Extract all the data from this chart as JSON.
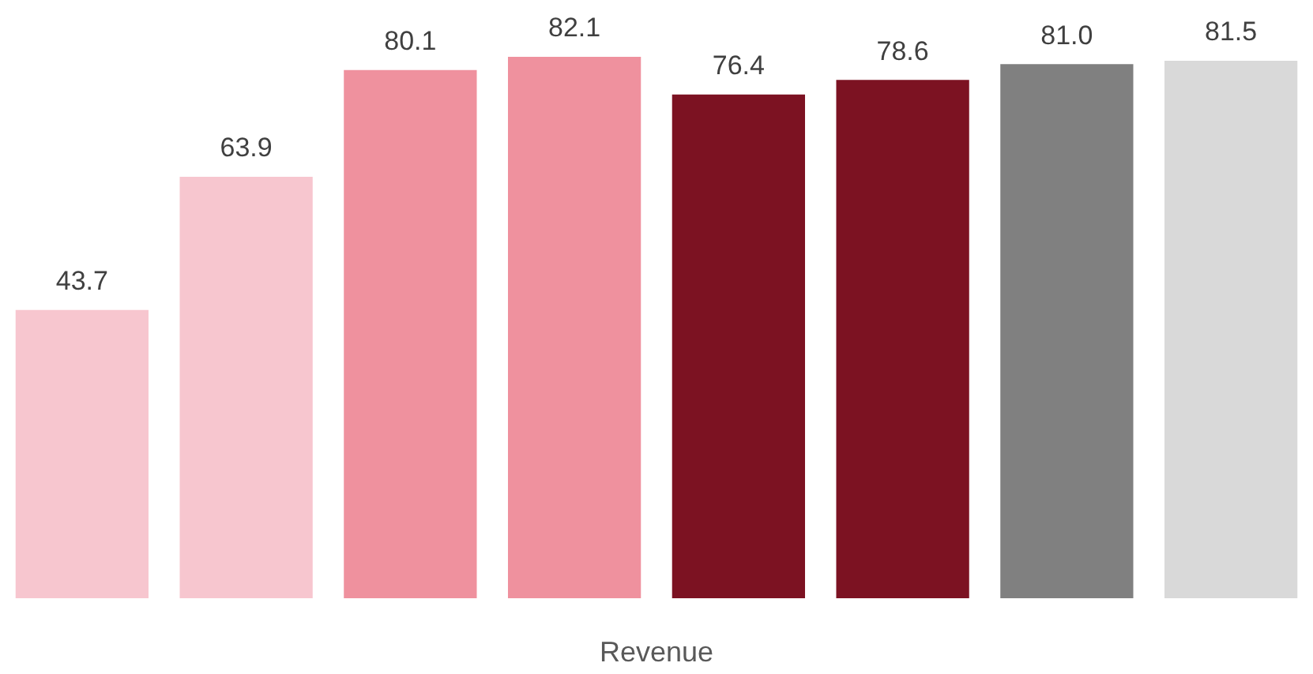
{
  "chart_data": {
    "type": "bar",
    "xlabel": "Revenue",
    "categories": [
      null,
      null,
      null,
      null,
      null,
      null,
      null,
      null
    ],
    "values": [
      43.7,
      63.9,
      80.1,
      82.1,
      76.4,
      78.6,
      81.0,
      81.5
    ],
    "colors": [
      "#f7c6cf",
      "#f7c6cf",
      "#ef919e",
      "#ef919e",
      "#7c1222",
      "#7c1222",
      "#808080",
      "#d9d9d9"
    ],
    "value_labels": [
      "43.7",
      "63.9",
      "80.1",
      "82.1",
      "76.4",
      "78.6",
      "81.0",
      "81.5"
    ],
    "grid": false,
    "legend": false
  }
}
